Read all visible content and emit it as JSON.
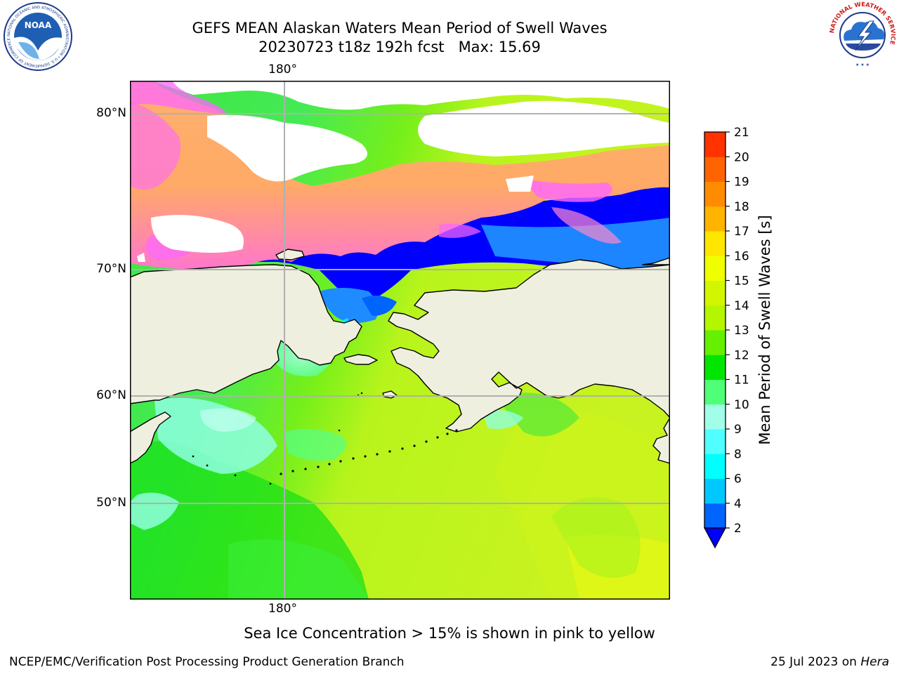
{
  "header": {
    "title_line1": "GEFS MEAN Alaskan Waters Mean Period of Swell Waves",
    "title_line2": "20230723 t18z 192h fcst   Max: 15.69"
  },
  "map": {
    "lon_top_label": "180°",
    "lon_bottom_label": "180°",
    "lat_labels": [
      "80°N",
      "70°N",
      "60°N",
      "50°N"
    ]
  },
  "colorbar": {
    "unit_label": "Mean Period of Swell Waves [s]",
    "ticks": [
      "2",
      "4",
      "6",
      "8",
      "9",
      "10",
      "11",
      "12",
      "13",
      "14",
      "15",
      "16",
      "17",
      "18",
      "19",
      "20",
      "21"
    ],
    "colors": [
      "#0064ff",
      "#00c8ff",
      "#00ffff",
      "#50ffff",
      "#a0ffe6",
      "#50ff78",
      "#00e600",
      "#64f000",
      "#b4f500",
      "#d2f500",
      "#f0ff00",
      "#ffe600",
      "#ffb400",
      "#ff8c00",
      "#ff6400",
      "#ff3200",
      "#ff0000"
    ],
    "under_color": "#0000ff"
  },
  "footer": {
    "note": "Sea Ice Concentration > 15% is shown in pink to yellow",
    "credit": "NCEP/EMC/Verification Post Processing Product Generation Branch",
    "date_prefix": "25 Jul 2023 on ",
    "date_host": "Hera"
  },
  "logos": {
    "left_name": "NOAA",
    "left_ring_text": "NATIONAL OCEANIC AND ATMOSPHERIC ADMINISTRATION • U.S. DEPARTMENT OF COMMERCE",
    "right_ring_text": "NATIONAL WEATHER SERVICE"
  },
  "palette": {
    "land": "#efefdf",
    "sea_ice": [
      "#ff66ff",
      "#ff88cc",
      "#ffaa66",
      "#ffcc55"
    ],
    "open_water_north": "#0000ff"
  }
}
